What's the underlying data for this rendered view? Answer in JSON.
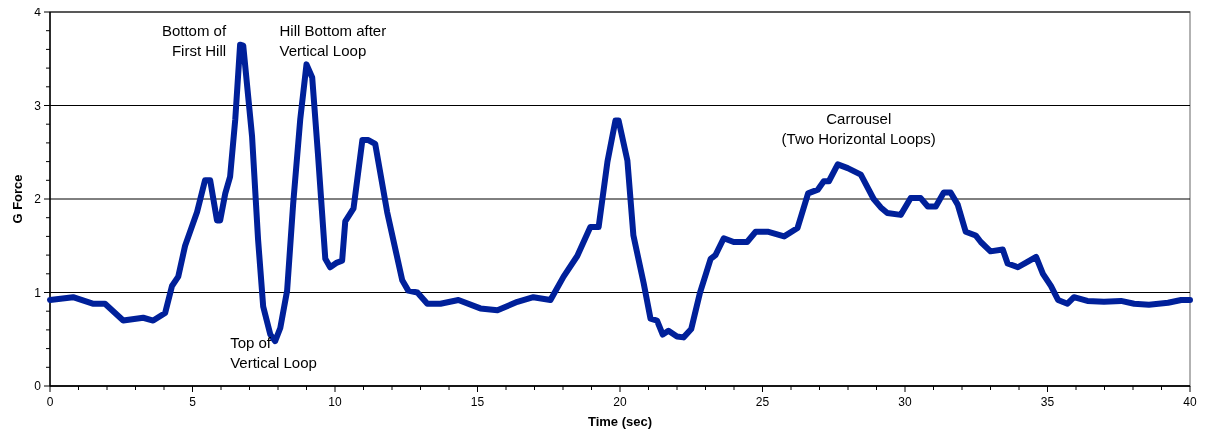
{
  "chart_data": {
    "type": "line",
    "xlabel": "Time (sec)",
    "ylabel": "G Force",
    "xlim": [
      0,
      40
    ],
    "ylim": [
      0,
      4
    ],
    "xticks": [
      0,
      {
        "value": 1,
        "label": null
      },
      {
        "value": 2,
        "label": null
      },
      {
        "value": 3,
        "label": null
      },
      {
        "value": 4,
        "label": null
      },
      5,
      {
        "value": 6,
        "label": null
      },
      {
        "value": 7,
        "label": null
      },
      {
        "value": 8,
        "label": null
      },
      {
        "value": 9,
        "label": null
      },
      10,
      {
        "value": 11,
        "label": null
      },
      {
        "value": 12,
        "label": null
      },
      {
        "value": 13,
        "label": null
      },
      {
        "value": 14,
        "label": null
      },
      15,
      {
        "value": 16,
        "label": null
      },
      {
        "value": 17,
        "label": null
      },
      {
        "value": 18,
        "label": null
      },
      {
        "value": 19,
        "label": null
      },
      20,
      {
        "value": 21,
        "label": null
      },
      {
        "value": 22,
        "label": null
      },
      {
        "value": 23,
        "label": null
      },
      {
        "value": 24,
        "label": null
      },
      25,
      {
        "value": 26,
        "label": null
      },
      {
        "value": 27,
        "label": null
      },
      {
        "value": 28,
        "label": null
      },
      {
        "value": 29,
        "label": null
      },
      30,
      {
        "value": 31,
        "label": null
      },
      {
        "value": 32,
        "label": null
      },
      {
        "value": 33,
        "label": null
      },
      {
        "value": 34,
        "label": null
      },
      35,
      {
        "value": 36,
        "label": null
      },
      {
        "value": 37,
        "label": null
      },
      {
        "value": 38,
        "label": null
      },
      {
        "value": 39,
        "label": null
      },
      40
    ],
    "yticks": [
      0,
      {
        "value": 0.2,
        "label": null
      },
      {
        "value": 0.4,
        "label": null
      },
      {
        "value": 0.6,
        "label": null
      },
      {
        "value": 0.8,
        "label": null
      },
      1,
      {
        "value": 1.2,
        "label": null
      },
      {
        "value": 1.4,
        "label": null
      },
      {
        "value": 1.6,
        "label": null
      },
      {
        "value": 1.8,
        "label": null
      },
      2,
      {
        "value": 2.2,
        "label": null
      },
      {
        "value": 2.4,
        "label": null
      },
      {
        "value": 2.6,
        "label": null
      },
      {
        "value": 2.8,
        "label": null
      },
      3,
      {
        "value": 3.2,
        "label": null
      },
      {
        "value": 3.4,
        "label": null
      },
      {
        "value": 3.6,
        "label": null
      },
      {
        "value": 3.8,
        "label": null
      },
      4
    ],
    "grid": "y",
    "marker": "none",
    "line_style": "solid",
    "series": [
      {
        "color": "#00209a",
        "x": [
          0,
          0.81,
          1.5,
          1.93,
          2.57,
          3.27,
          3.62,
          4.04,
          4.28,
          4.5,
          4.74,
          5.16,
          5.44,
          5.62,
          5.86,
          5.97,
          6.15,
          6.32,
          6.5,
          6.67,
          6.78,
          7.09,
          7.3,
          7.48,
          7.73,
          7.9,
          8.08,
          8.32,
          8.53,
          8.78,
          9.0,
          9.2,
          9.4,
          9.66,
          9.83,
          10.07,
          10.25,
          10.36,
          10.65,
          10.96,
          11.17,
          11.41,
          11.83,
          12.36,
          12.57,
          12.89,
          13.24,
          13.7,
          14.33,
          15.1,
          15.7,
          16.4,
          16.96,
          17.56,
          18.02,
          18.5,
          18.96,
          19.25,
          19.56,
          19.84,
          19.95,
          20.26,
          20.47,
          20.83,
          21.07,
          21.3,
          21.5,
          21.7,
          22.0,
          22.23,
          22.5,
          22.8,
          23.18,
          23.35,
          23.64,
          23.99,
          24.46,
          24.76,
          25.18,
          25.76,
          26.23,
          26.6,
          26.94,
          27.15,
          27.33,
          27.64,
          27.99,
          28.45,
          28.9,
          29.15,
          29.38,
          29.85,
          30.2,
          30.55,
          30.8,
          31.08,
          31.36,
          31.6,
          31.85,
          32.13,
          32.48,
          32.66,
          33.0,
          33.43,
          33.6,
          33.96,
          34.31,
          34.6,
          34.84,
          35.12,
          35.37,
          35.7,
          35.93,
          36.4,
          36.98,
          37.58,
          38.04,
          38.56,
          39.23,
          39.69,
          40
        ],
        "values": [
          0.92,
          0.95,
          0.88,
          0.88,
          0.7,
          0.73,
          0.7,
          0.78,
          1.07,
          1.17,
          1.5,
          1.86,
          2.2,
          2.2,
          1.77,
          1.77,
          2.06,
          2.24,
          2.85,
          3.65,
          3.64,
          2.67,
          1.57,
          0.85,
          0.55,
          0.48,
          0.62,
          1.02,
          1.94,
          2.85,
          3.44,
          3.3,
          2.49,
          1.36,
          1.27,
          1.32,
          1.34,
          1.76,
          1.9,
          2.63,
          2.63,
          2.59,
          1.86,
          1.13,
          1.02,
          1.0,
          0.88,
          0.88,
          0.92,
          0.83,
          0.81,
          0.9,
          0.95,
          0.92,
          1.17,
          1.39,
          1.7,
          1.7,
          2.4,
          2.84,
          2.84,
          2.41,
          1.61,
          1.1,
          0.72,
          0.7,
          0.55,
          0.59,
          0.53,
          0.52,
          0.61,
          0.99,
          1.36,
          1.4,
          1.58,
          1.54,
          1.54,
          1.65,
          1.65,
          1.6,
          1.69,
          2.06,
          2.1,
          2.19,
          2.19,
          2.37,
          2.33,
          2.26,
          2.0,
          1.91,
          1.85,
          1.83,
          2.01,
          2.01,
          1.92,
          1.92,
          2.07,
          2.07,
          1.94,
          1.65,
          1.61,
          1.54,
          1.44,
          1.46,
          1.31,
          1.27,
          1.33,
          1.38,
          1.2,
          1.07,
          0.92,
          0.88,
          0.95,
          0.91,
          0.9,
          0.91,
          0.88,
          0.87,
          0.89,
          0.92,
          0.92
        ]
      }
    ],
    "annotations": [
      {
        "text": "Bottom of\nFirst Hill",
        "x": 6.67,
        "y": 3.65
      },
      {
        "text": "Hill Bottom after\nVertical Loop",
        "x": 9.0,
        "y": 3.44
      },
      {
        "text": "Top of\nVertical Loop",
        "x": 7.9,
        "y": 0.48
      },
      {
        "text": "Carrousel\n(Two Horizontal Loops)",
        "x": 27.64,
        "y": 2.37
      }
    ]
  }
}
